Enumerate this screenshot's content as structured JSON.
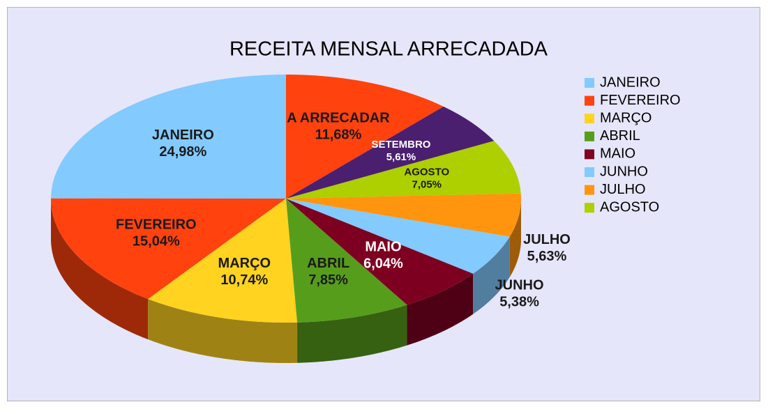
{
  "chart_data": {
    "type": "pie3d",
    "title": "RECEITA MENSAL ARRECADADA",
    "categories": [
      "JANEIRO",
      "FEVEREIRO",
      "MARÇO",
      "ABRIL",
      "MAIO",
      "JUNHO",
      "JULHO",
      "AGOSTO",
      "SETEMBRO",
      "A ARRECADAR"
    ],
    "values": [
      24.98,
      15.04,
      10.74,
      7.85,
      6.04,
      5.38,
      5.63,
      7.05,
      5.61,
      11.68
    ],
    "value_labels": [
      "24,98%",
      "15,04%",
      "10,74%",
      "7,85%",
      "6,04%",
      "5,38%",
      "5,63%",
      "7,05%",
      "5,61%",
      "11,68%"
    ],
    "colors": [
      "#83caff",
      "#ff420e",
      "#ffd320",
      "#579d1c",
      "#7e0021",
      "#83caff",
      "#ff950e",
      "#aecf00",
      "#4b1f6f",
      "#ff420e"
    ],
    "legend_rows": 8,
    "legend_position": "right"
  }
}
